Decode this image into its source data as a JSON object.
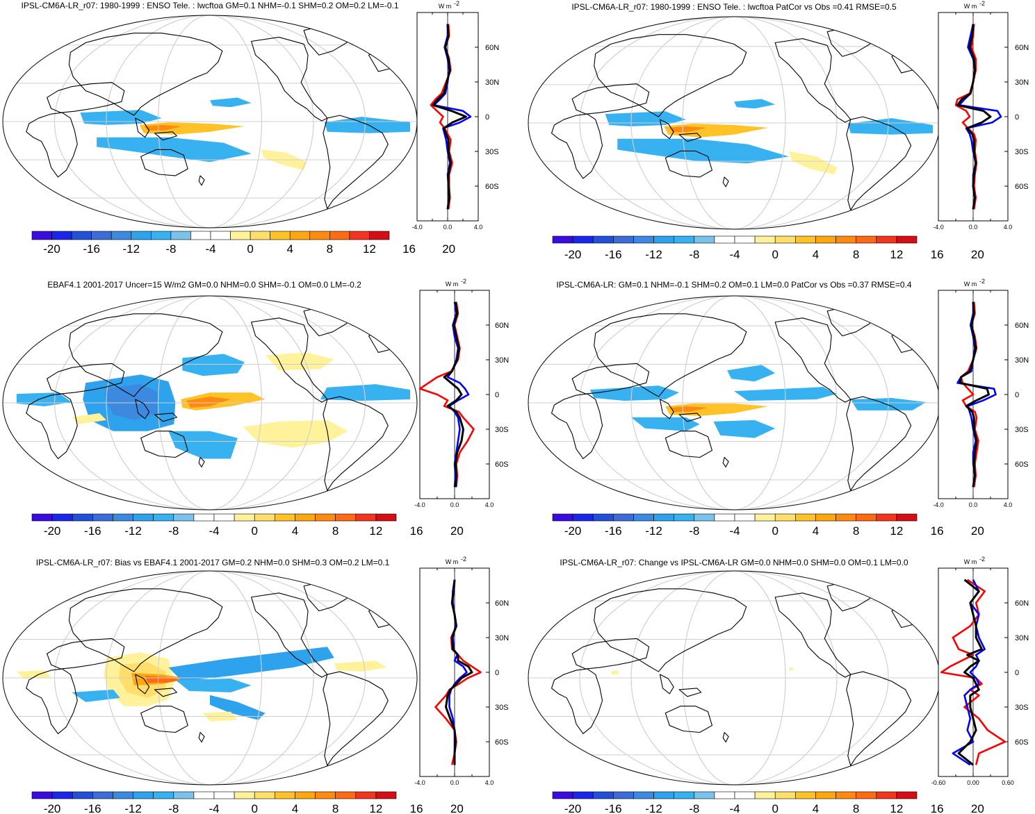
{
  "figure": {
    "colorbar": {
      "colors": [
        "#3a0dde",
        "#1a26e8",
        "#2250d6",
        "#3c6cd8",
        "#3c8ae0",
        "#2ea2ec",
        "#37b1f0",
        "#79c2ea",
        "#ffffff",
        "#ffffff",
        "#fff29a",
        "#ffde6a",
        "#ffc328",
        "#ffa70f",
        "#ff8a10",
        "#ff6a14",
        "#f2351e",
        "#d50d14"
      ],
      "labels": [
        "-20",
        "-16",
        "-12",
        "-8",
        "-4",
        "0",
        "4",
        "8",
        "12",
        "16",
        "20"
      ]
    },
    "lat_labels": [
      "60N",
      "30N",
      "0",
      "30S",
      "60S"
    ],
    "unit_label": "W m",
    "unit_exp": "-2"
  },
  "chart_data": [
    {
      "type": "heatmap",
      "title": "IPSL-CM6A-LR_r07: 1980-1999 : ENSO Tele. : lwcftoa GM=0.1 NHM=-0.1 SHM=0.2 OM=0.2 LM=-0.1",
      "zonal_profile": {
        "xlim": [
          -4.0,
          4.0
        ],
        "xticks": [
          "-4.0",
          "0.0",
          "4.0"
        ],
        "lat": [
          80,
          70,
          60,
          50,
          40,
          30,
          20,
          15,
          10,
          5,
          0,
          -5,
          -10,
          -15,
          -20,
          -30,
          -40,
          -50,
          -60,
          -70,
          -80
        ],
        "series": [
          {
            "color": "#ff0000",
            "values": [
              0.1,
              0.2,
              -0.3,
              0.2,
              0.4,
              -0.2,
              -0.8,
              -1.6,
              -2.2,
              -1.4,
              -0.6,
              -1.0,
              -0.4,
              0.0,
              0.4,
              0.2,
              0.6,
              0.2,
              0.2,
              0.3,
              0.1
            ]
          },
          {
            "color": "#0000ff",
            "values": [
              0.0,
              0.0,
              -0.4,
              0.0,
              0.2,
              0.0,
              -0.3,
              -1.0,
              -1.8,
              2.0,
              3.0,
              1.6,
              -0.6,
              -0.4,
              -0.2,
              0.0,
              0.3,
              0.0,
              0.1,
              0.2,
              0.0
            ]
          },
          {
            "color": "#000000",
            "values": [
              0.0,
              0.1,
              -0.3,
              0.1,
              0.3,
              -0.1,
              -0.5,
              -1.3,
              -1.9,
              0.5,
              2.4,
              0.6,
              -0.5,
              -0.2,
              0.1,
              0.1,
              0.4,
              0.1,
              0.1,
              0.2,
              0.0
            ]
          }
        ]
      }
    },
    {
      "type": "heatmap",
      "title": "IPSL-CM6A-LR_r07: 1980-1999 : ENSO Tele. : lwcftoa PatCor vs Obs =0.41 RMSE=0.5",
      "zonal_profile": {
        "xlim": [
          -4.0,
          4.0
        ],
        "xticks": [
          "-4.0",
          "0.0",
          "4.0"
        ],
        "lat": [
          80,
          70,
          60,
          50,
          40,
          30,
          20,
          15,
          10,
          5,
          0,
          -5,
          -10,
          -15,
          -20,
          -30,
          -40,
          -50,
          -60,
          -70,
          -80
        ],
        "series": [
          {
            "color": "#ff0000",
            "values": [
              0.1,
              0.0,
              -0.2,
              0.3,
              0.3,
              0.0,
              -0.4,
              -1.8,
              -2.0,
              -0.8,
              -0.4,
              -1.2,
              -0.6,
              0.1,
              0.3,
              0.2,
              0.4,
              0.2,
              0.1,
              0.3,
              0.1
            ]
          },
          {
            "color": "#0000ff",
            "values": [
              0.0,
              -0.3,
              -0.6,
              0.0,
              0.2,
              0.0,
              -0.3,
              -1.0,
              -1.6,
              2.8,
              3.2,
              2.2,
              -0.8,
              -0.4,
              -0.2,
              0.0,
              0.3,
              0.0,
              0.0,
              0.2,
              0.0
            ]
          },
          {
            "color": "#000000",
            "values": [
              0.0,
              -0.1,
              -0.4,
              0.1,
              0.2,
              0.0,
              -0.3,
              -1.3,
              -1.8,
              1.2,
              2.0,
              1.0,
              -0.7,
              -0.1,
              0.1,
              0.1,
              0.3,
              0.1,
              0.0,
              0.2,
              0.0
            ]
          }
        ]
      }
    },
    {
      "type": "heatmap",
      "title": "EBAF4.1 2001-2017 Uncer=15 W/m2 GM=0.0 NHM=0.0 SHM=-0.1 OM=0.0 LM=-0.2",
      "zonal_profile": {
        "xlim": [
          -4.0,
          4.0
        ],
        "xticks": [
          "-4.0",
          "0.0",
          "4.0"
        ],
        "lat": [
          80,
          70,
          60,
          50,
          40,
          30,
          20,
          15,
          10,
          5,
          0,
          -5,
          -10,
          -15,
          -20,
          -30,
          -40,
          -50,
          -60,
          -70,
          -80
        ],
        "series": [
          {
            "color": "#ff0000",
            "values": [
              0.2,
              0.4,
              0.0,
              0.3,
              0.6,
              0.4,
              -0.4,
              -2.0,
              -3.0,
              -4.0,
              -2.0,
              -0.8,
              -1.2,
              0.5,
              1.0,
              2.2,
              1.5,
              0.6,
              0.2,
              0.3,
              0.2
            ]
          },
          {
            "color": "#0000ff",
            "values": [
              0.0,
              0.2,
              -0.2,
              0.0,
              0.4,
              0.2,
              -0.3,
              -0.8,
              0.6,
              1.2,
              1.6,
              0.4,
              -0.6,
              0.0,
              0.4,
              0.6,
              0.4,
              0.2,
              0.0,
              0.1,
              0.0
            ]
          },
          {
            "color": "#000000",
            "values": [
              0.1,
              0.3,
              -0.1,
              0.2,
              0.5,
              0.3,
              -0.3,
              -1.2,
              -0.4,
              0.4,
              0.8,
              0.2,
              -0.8,
              0.2,
              0.6,
              1.0,
              0.8,
              0.3,
              0.1,
              0.2,
              0.1
            ]
          }
        ]
      }
    },
    {
      "type": "heatmap",
      "title": "IPSL-CM6A-LR: GM=0.1 NHM=-0.1 SHM=0.2 OM=0.1 LM=0.0 PatCor vs Obs =0.37 RMSE=0.4",
      "zonal_profile": {
        "xlim": [
          -4.0,
          4.0
        ],
        "xticks": [
          "-4.0",
          "0.0",
          "4.0"
        ],
        "lat": [
          80,
          70,
          60,
          50,
          40,
          30,
          20,
          15,
          10,
          5,
          0,
          -5,
          -10,
          -15,
          -20,
          -30,
          -40,
          -50,
          -60,
          -70,
          -80
        ],
        "series": [
          {
            "color": "#ff0000",
            "values": [
              0.1,
              0.2,
              -0.2,
              0.2,
              0.4,
              0.0,
              -0.6,
              -1.4,
              -1.2,
              -0.6,
              0.0,
              -1.2,
              -0.8,
              0.2,
              0.4,
              0.2,
              0.6,
              0.4,
              0.2,
              0.3,
              0.1
            ]
          },
          {
            "color": "#0000ff",
            "values": [
              0.0,
              0.0,
              -0.3,
              0.0,
              0.2,
              0.0,
              -0.2,
              -1.4,
              -1.8,
              2.4,
              2.6,
              1.2,
              -0.6,
              -0.4,
              -0.2,
              0.0,
              0.3,
              0.0,
              0.0,
              0.2,
              0.0
            ]
          },
          {
            "color": "#000000",
            "values": [
              0.0,
              0.1,
              -0.2,
              0.1,
              0.3,
              0.0,
              -0.4,
              -1.4,
              -1.5,
              1.6,
              1.8,
              0.4,
              -0.8,
              -0.1,
              0.1,
              0.1,
              0.4,
              0.2,
              0.1,
              0.2,
              0.0
            ]
          }
        ]
      }
    },
    {
      "type": "heatmap",
      "title": "IPSL-CM6A-LR_r07: Bias vs EBAF4.1 2001-2017 GM=0.2 NHM=0.0 SHM=0.3 OM=0.2 LM=0.1",
      "zonal_profile": {
        "xlim": [
          -4.0,
          4.0
        ],
        "xticks": [
          "-4.0",
          "0.0",
          "4.0"
        ],
        "lat": [
          80,
          70,
          60,
          50,
          40,
          30,
          20,
          15,
          10,
          5,
          0,
          -5,
          -10,
          -15,
          -20,
          -30,
          -40,
          -50,
          -60,
          -70,
          -80
        ],
        "series": [
          {
            "color": "#ff0000",
            "values": [
              0.0,
              -0.2,
              -0.3,
              0.0,
              0.2,
              -0.4,
              -0.3,
              0.4,
              1.0,
              2.0,
              3.0,
              1.5,
              0.5,
              -0.6,
              -1.0,
              -2.2,
              -1.0,
              0.0,
              0.2,
              0.0,
              -0.3
            ]
          },
          {
            "color": "#0000ff",
            "values": [
              0.0,
              -0.2,
              -0.2,
              0.0,
              0.1,
              -0.2,
              -0.1,
              0.3,
              0.0,
              1.0,
              1.4,
              0.6,
              0.0,
              -0.4,
              -0.6,
              -0.6,
              -0.2,
              0.0,
              0.0,
              0.0,
              0.0
            ]
          },
          {
            "color": "#000000",
            "values": [
              0.0,
              -0.1,
              -0.3,
              0.0,
              0.2,
              -0.3,
              -0.2,
              0.4,
              0.4,
              1.6,
              2.0,
              0.8,
              0.2,
              -0.5,
              -0.8,
              -1.0,
              -0.5,
              0.0,
              0.1,
              0.0,
              0.0
            ]
          }
        ]
      }
    },
    {
      "type": "heatmap",
      "title": "IPSL-CM6A-LR_r07: Change vs IPSL-CM6A-LR GM=0.0 NHM=0.0 SHM=0.0 OM=0.1 LM=0.0",
      "zonal_profile": {
        "xlim": [
          -0.6,
          0.6
        ],
        "xticks": [
          "-0.60",
          "0.00",
          "0.60"
        ],
        "lat": [
          80,
          70,
          60,
          50,
          40,
          30,
          20,
          15,
          10,
          5,
          0,
          -5,
          -10,
          -15,
          -20,
          -30,
          -40,
          -50,
          -60,
          -70,
          -80
        ],
        "series": [
          {
            "color": "#ff0000",
            "values": [
              -0.1,
              0.2,
              0.05,
              0.1,
              -0.05,
              -0.35,
              -0.25,
              0.0,
              -0.2,
              -0.4,
              -0.55,
              0.05,
              0.15,
              -0.05,
              0.1,
              -0.15,
              0.1,
              0.25,
              0.55,
              0.1,
              0.05
            ]
          },
          {
            "color": "#0000ff",
            "values": [
              0.0,
              0.1,
              -0.05,
              0.1,
              0.05,
              0.1,
              0.2,
              0.05,
              0.1,
              0.05,
              -0.05,
              0.05,
              0.1,
              -0.05,
              -0.15,
              -0.1,
              -0.05,
              -0.1,
              0.0,
              -0.35,
              -0.05
            ]
          },
          {
            "color": "#000000",
            "values": [
              -0.15,
              0.1,
              -0.05,
              0.0,
              0.05,
              0.05,
              0.15,
              -0.1,
              0.1,
              -0.05,
              -0.15,
              0.0,
              0.05,
              0.1,
              -0.05,
              -0.05,
              0.0,
              0.05,
              -0.05,
              -0.25,
              0.0
            ]
          }
        ]
      }
    }
  ]
}
